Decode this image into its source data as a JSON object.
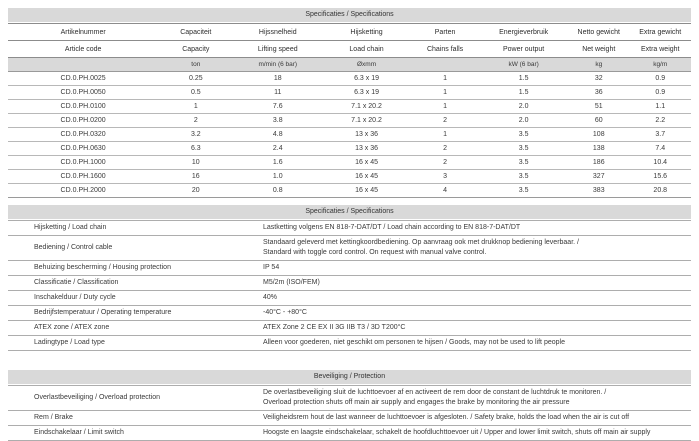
{
  "spec_table": {
    "title": "Specificaties / Specifications",
    "columns": [
      {
        "nl": "Artikelnummer",
        "en": "Article code",
        "unit": ""
      },
      {
        "nl": "Capaciteit",
        "en": "Capacity",
        "unit": "ton"
      },
      {
        "nl": "Hijssnelheid",
        "en": "Lifting speed",
        "unit": "m/min (6 bar)"
      },
      {
        "nl": "Hijsketting",
        "en": "Load chain",
        "unit": "Øxmm"
      },
      {
        "nl": "Parten",
        "en": "Chains falls",
        "unit": ""
      },
      {
        "nl": "Energieverbruik",
        "en": "Power output",
        "unit": "kW (6 bar)"
      },
      {
        "nl": "Netto gewicht",
        "en": "Net weight",
        "unit": "kg"
      },
      {
        "nl": "Extra gewicht",
        "en": "Extra weight",
        "unit": "kg/m"
      }
    ],
    "rows": [
      [
        "CD.0.PH.0025",
        "0.25",
        "18",
        "6.3 x 19",
        "1",
        "1.5",
        "32",
        "0.9"
      ],
      [
        "CD.0.PH.0050",
        "0.5",
        "11",
        "6.3 x 19",
        "1",
        "1.5",
        "36",
        "0.9"
      ],
      [
        "CD.0.PH.0100",
        "1",
        "7.6",
        "7.1 x 20.2",
        "1",
        "2.0",
        "51",
        "1.1"
      ],
      [
        "CD.0.PH.0200",
        "2",
        "3.8",
        "7.1 x 20.2",
        "2",
        "2.0",
        "60",
        "2.2"
      ],
      [
        "CD.0.PH.0320",
        "3.2",
        "4.8",
        "13 x 36",
        "1",
        "3.5",
        "108",
        "3.7"
      ],
      [
        "CD.0.PH.0630",
        "6.3",
        "2.4",
        "13 x 36",
        "2",
        "3.5",
        "138",
        "7.4"
      ],
      [
        "CD.0.PH.1000",
        "10",
        "1.6",
        "16 x 45",
        "2",
        "3.5",
        "186",
        "10.4"
      ],
      [
        "CD.0.PH.1600",
        "16",
        "1.0",
        "16 x 45",
        "3",
        "3.5",
        "327",
        "15.6"
      ],
      [
        "CD.0.PH.2000",
        "20",
        "0.8",
        "16 x 45",
        "4",
        "3.5",
        "383",
        "20.8"
      ]
    ]
  },
  "details_table": {
    "title": "Specificaties / Specifications",
    "rows": [
      {
        "label": "Hijsketting / Load chain",
        "value": "Lastketting volgens EN 818-7-DAT/DT / Load chain according to EN 818-7-DAT/DT"
      },
      {
        "label": "Bediening / Control cable",
        "value": "Standaard geleverd met kettingkoordbediening. Op aanvraag ook met drukknop bediening leverbaar. /\nStandard with toggle cord control. On request with manual valve control."
      },
      {
        "label": "Behuizing bescherming / Housing protection",
        "value": "IP 54"
      },
      {
        "label": "Classificatie / Classification",
        "value": "M5/2m (ISO/FEM)"
      },
      {
        "label": "Inschakelduur / Duty cycle",
        "value": "40%"
      },
      {
        "label": "Bedrijfstemperatuur / Operating temperature",
        "value": "-40°C  -  +80°C"
      },
      {
        "label": "ATEX zone / ATEX zone",
        "value": "ATEX Zone 2 CE EX II 3G IIB T3 / 3D T200°C"
      },
      {
        "label": "Ladingtype / Load type",
        "value": "Alleen voor goederen, niet geschikt om personen te hijsen / Goods, may not be used to lift people"
      }
    ]
  },
  "protection_table": {
    "title": "Beveiliging / Protection",
    "rows": [
      {
        "label": "Overlastbeveiliging / Overload protection",
        "value": "De overlastbeveiliging sluit de luchttoevoer af en activeert de rem door de constant de luchtdruk te monitoren. /\nOverload protection shuts off main air supply and engages the brake by monitoring the air pressure"
      },
      {
        "label": "Rem / Brake",
        "value": "Veiligheidsrem hout de last wanneer de luchttoevoer is afgesloten. / Safety brake, holds the load when the air is cut off"
      },
      {
        "label": "Eindschakelaar / Limit switch",
        "value": "Hoogste en laagste eindschakelaar, schakelt de hoofdluchttoevoer uit / Upper and lower limit switch, shuts off main air supply"
      }
    ]
  }
}
